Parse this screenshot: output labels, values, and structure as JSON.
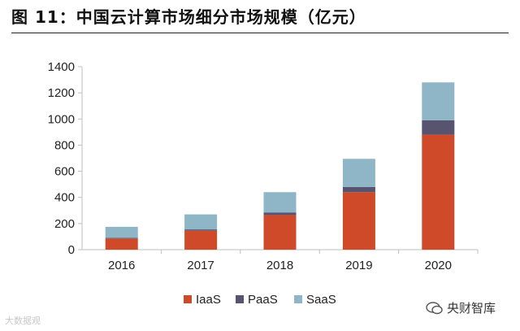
{
  "title": "图 11：中国云计算市场细分市场规模（亿元）",
  "watermarks": {
    "left": "大数据观",
    "right": "央财智库"
  },
  "colors": {
    "iaas": "#cf4a28",
    "paas": "#58536f",
    "saas": "#8fb6c7",
    "axis": "#bfbfbf"
  },
  "chart_data": {
    "type": "bar",
    "stacked": true,
    "categories": [
      "2016",
      "2017",
      "2018",
      "2019",
      "2020"
    ],
    "series": [
      {
        "name": "IaaS",
        "values": [
          85,
          145,
          265,
          440,
          880
        ]
      },
      {
        "name": "PaaS",
        "values": [
          5,
          10,
          20,
          40,
          110
        ]
      },
      {
        "name": "SaaS",
        "values": [
          85,
          115,
          155,
          215,
          290
        ]
      }
    ],
    "ylim": [
      0,
      1400
    ],
    "yticks": [
      0,
      200,
      400,
      600,
      800,
      1000,
      1200,
      1400
    ],
    "grid": false,
    "legend": "bottom",
    "xlabel": "",
    "ylabel": ""
  }
}
